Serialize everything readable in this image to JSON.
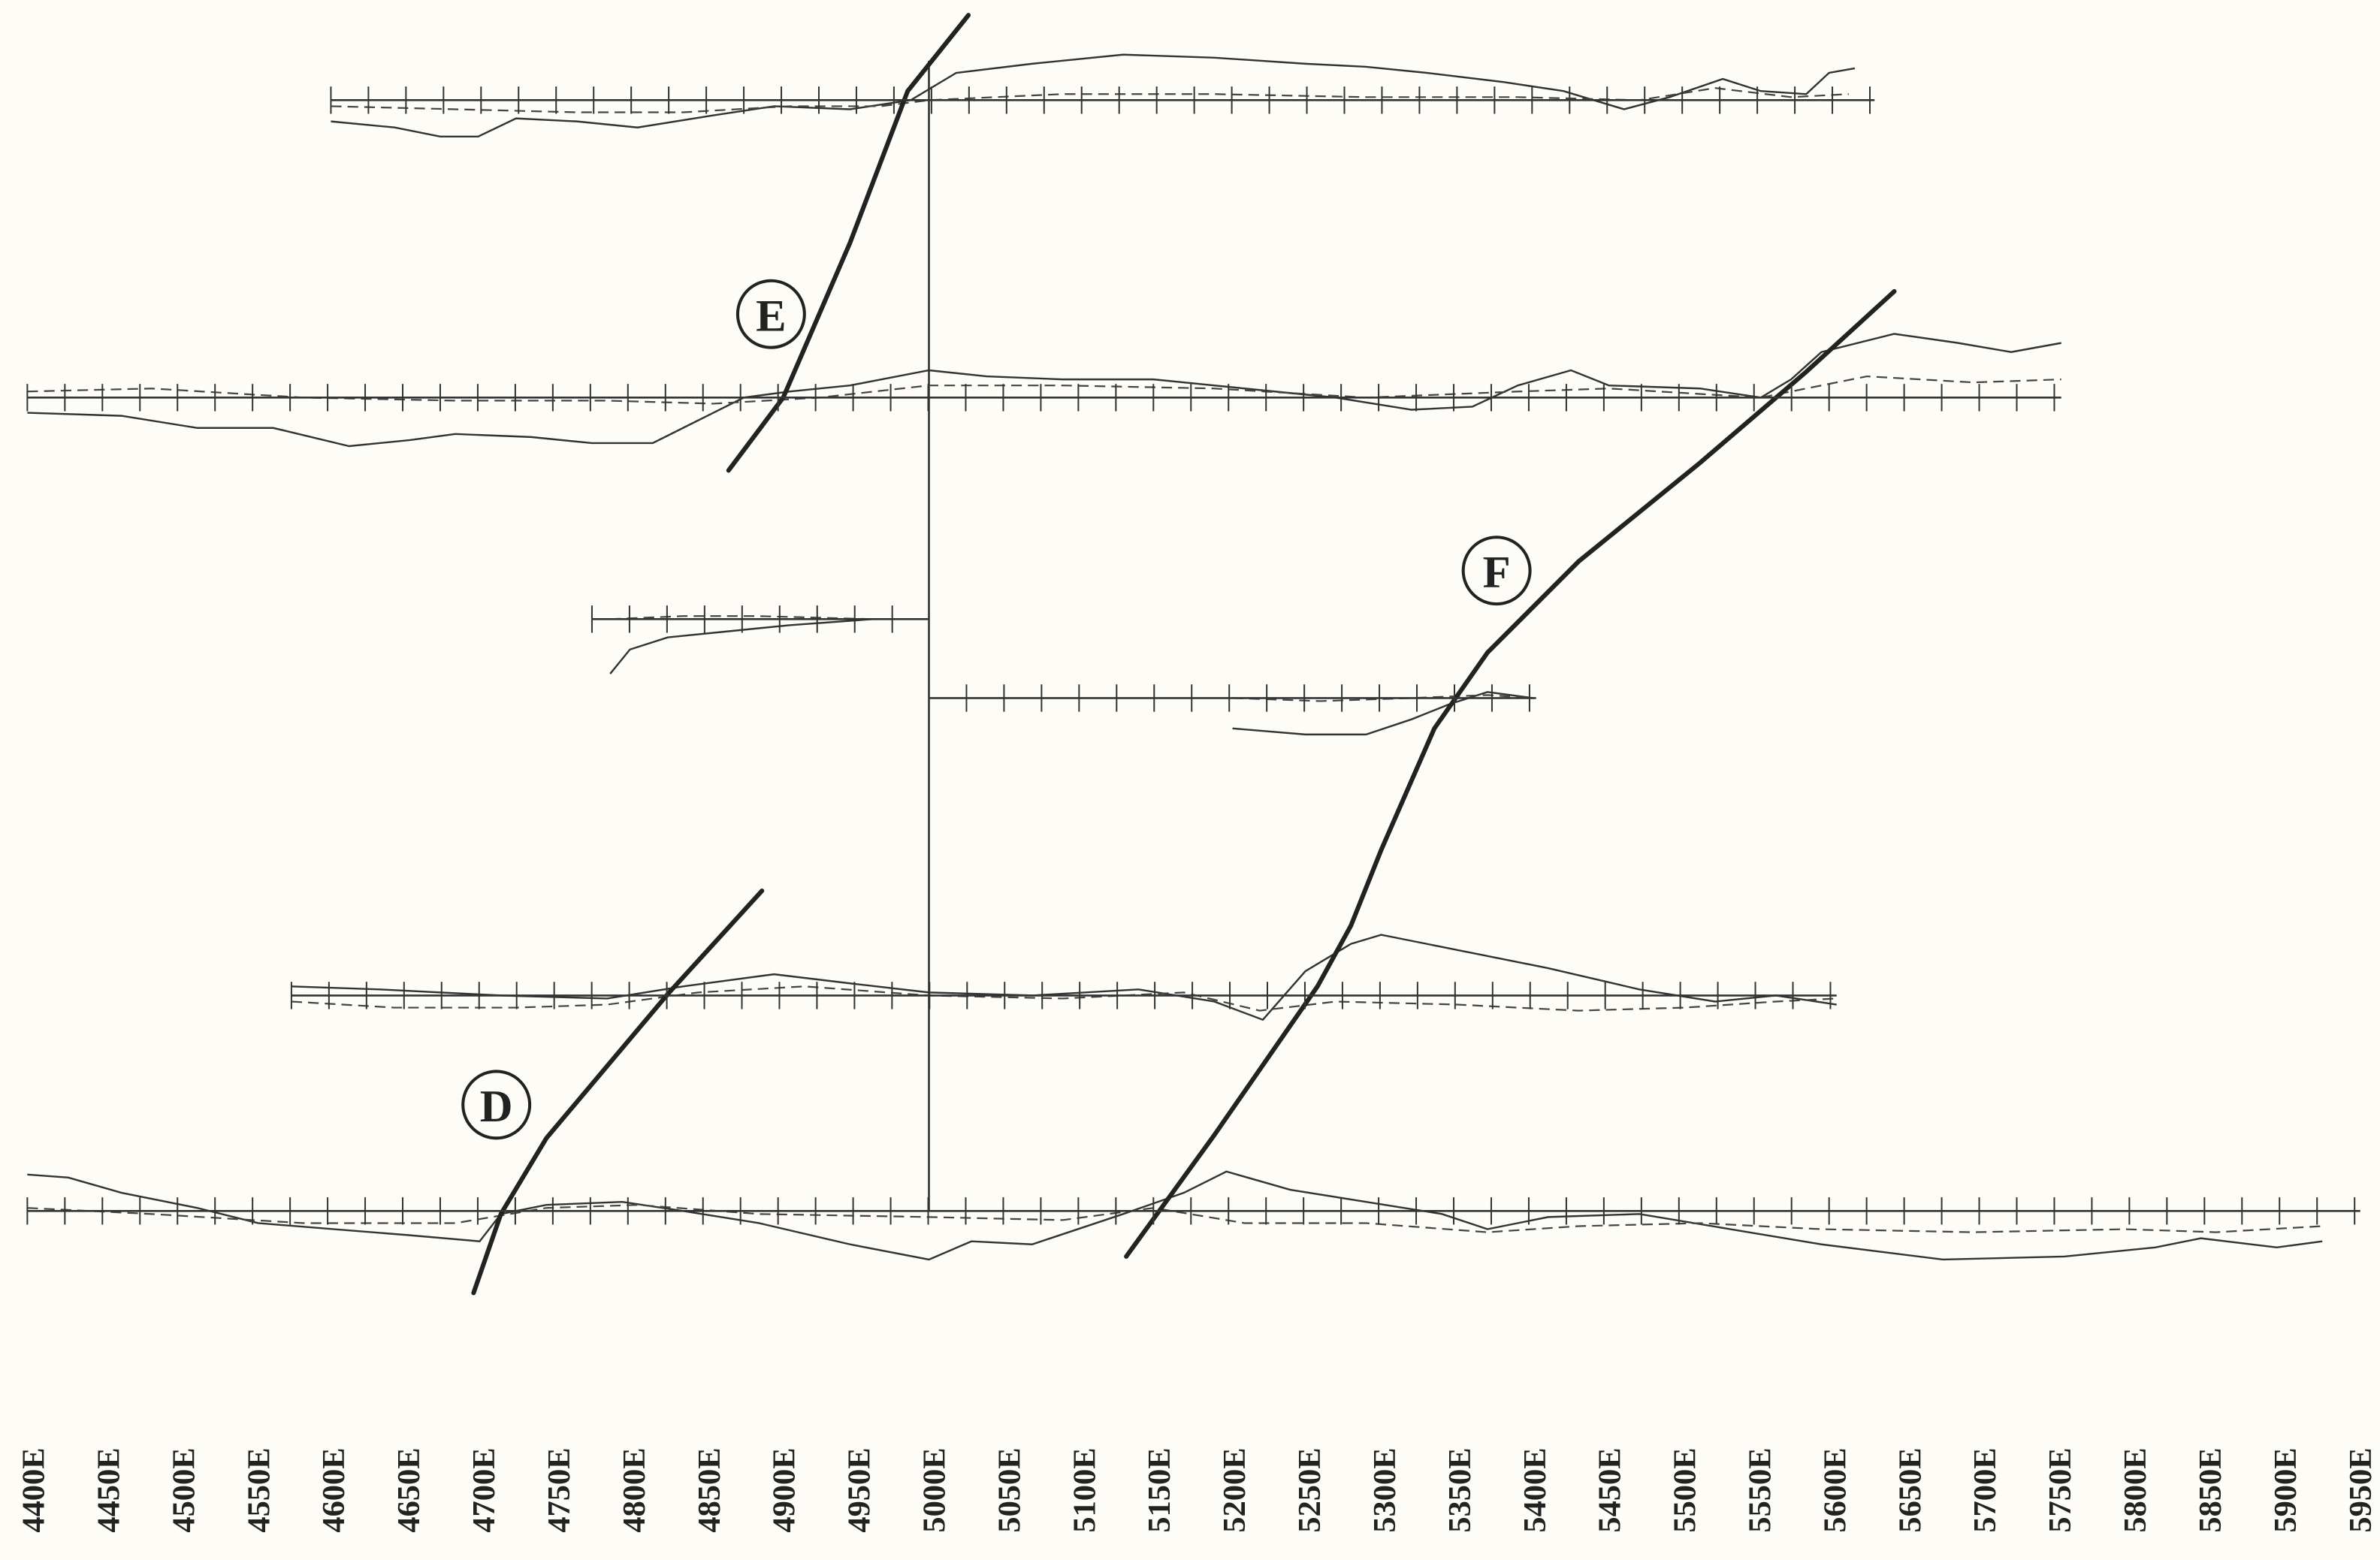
{
  "labels": {
    "e": "E",
    "f": "F",
    "d": "D"
  },
  "axis_labels": [
    "4400E",
    "4450E",
    "4500E",
    "4550E",
    "4600E",
    "4650E",
    "4700E",
    "4750E",
    "4800E",
    "4850E",
    "4900E",
    "4950E",
    "5000E",
    "5050E",
    "5100E",
    "5150E",
    "5200E",
    "5250E",
    "5300E",
    "5350E",
    "5400E",
    "5450E",
    "5500E",
    "5550E",
    "5600E",
    "5650E",
    "5700E",
    "5750E",
    "5800E",
    "5850E",
    "5900E",
    "5950E"
  ]
}
